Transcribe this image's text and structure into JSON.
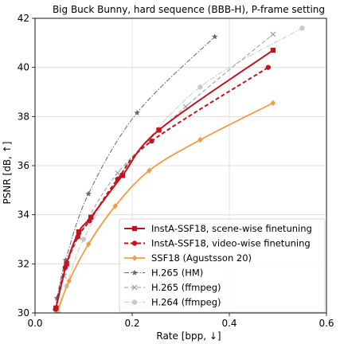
{
  "chart_data": {
    "type": "line",
    "title": "Big Buck Bunny, hard sequence (BBB-H), P-frame setting",
    "xlabel": "Rate [bpp, ↓]",
    "ylabel": "PSNR [dB, ↑]",
    "xlim": [
      0.0,
      0.6
    ],
    "ylim": [
      30,
      42
    ],
    "xticks": [
      0.0,
      0.2,
      0.4,
      0.6
    ],
    "xtick_labels": [
      "0.0",
      "0.2",
      "0.4",
      "0.6"
    ],
    "yticks": [
      30,
      32,
      34,
      36,
      38,
      40,
      42
    ],
    "ytick_labels": [
      "30",
      "32",
      "34",
      "36",
      "38",
      "40",
      "42"
    ],
    "grid": true,
    "legend_position": "lower-right",
    "series": [
      {
        "name": "InstA-SSF18, scene-wise finetuning",
        "color": "#c0141e",
        "line_style": "solid",
        "marker": "square",
        "x": [
          0.043,
          0.065,
          0.09,
          0.115,
          0.18,
          0.255,
          0.49
        ],
        "y": [
          30.2,
          32.0,
          33.3,
          33.9,
          35.6,
          37.45,
          40.7
        ]
      },
      {
        "name": "InstA-SSF18, video-wise finetuning",
        "color": "#c0141e",
        "line_style": "dashed",
        "marker": "circle",
        "x": [
          0.042,
          0.062,
          0.088,
          0.112,
          0.17,
          0.24,
          0.48
        ],
        "y": [
          30.15,
          31.85,
          33.1,
          33.75,
          35.45,
          37.0,
          40.0
        ]
      },
      {
        "name": "SSF18 (Agustsson 20)",
        "color": "#f39c45",
        "line_style": "solid",
        "marker": "diamond",
        "x": [
          0.045,
          0.07,
          0.11,
          0.165,
          0.235,
          0.34,
          0.49
        ],
        "y": [
          30.0,
          31.3,
          32.8,
          34.35,
          35.8,
          37.05,
          38.55
        ]
      },
      {
        "name": "H.265 (HM)",
        "color": "#666666",
        "line_style": "dashdot",
        "marker": "star",
        "x": [
          0.045,
          0.063,
          0.11,
          0.21,
          0.37
        ],
        "y": [
          30.6,
          32.15,
          34.85,
          38.15,
          41.25
        ]
      },
      {
        "name": "H.265 (ffmpeg)",
        "color": "#999999",
        "line_style": "dashed",
        "marker": "x",
        "x": [
          0.044,
          0.06,
          0.09,
          0.17,
          0.31,
          0.49
        ],
        "y": [
          30.2,
          31.5,
          33.1,
          35.7,
          38.4,
          41.35
        ]
      },
      {
        "name": "H.264 (ffmpeg)",
        "color": "#c8c8c8",
        "line_style": "dashdot",
        "marker": "circle",
        "x": [
          0.048,
          0.065,
          0.1,
          0.19,
          0.34,
          0.55
        ],
        "y": [
          30.0,
          31.1,
          33.0,
          36.0,
          39.2,
          41.6
        ]
      }
    ]
  }
}
